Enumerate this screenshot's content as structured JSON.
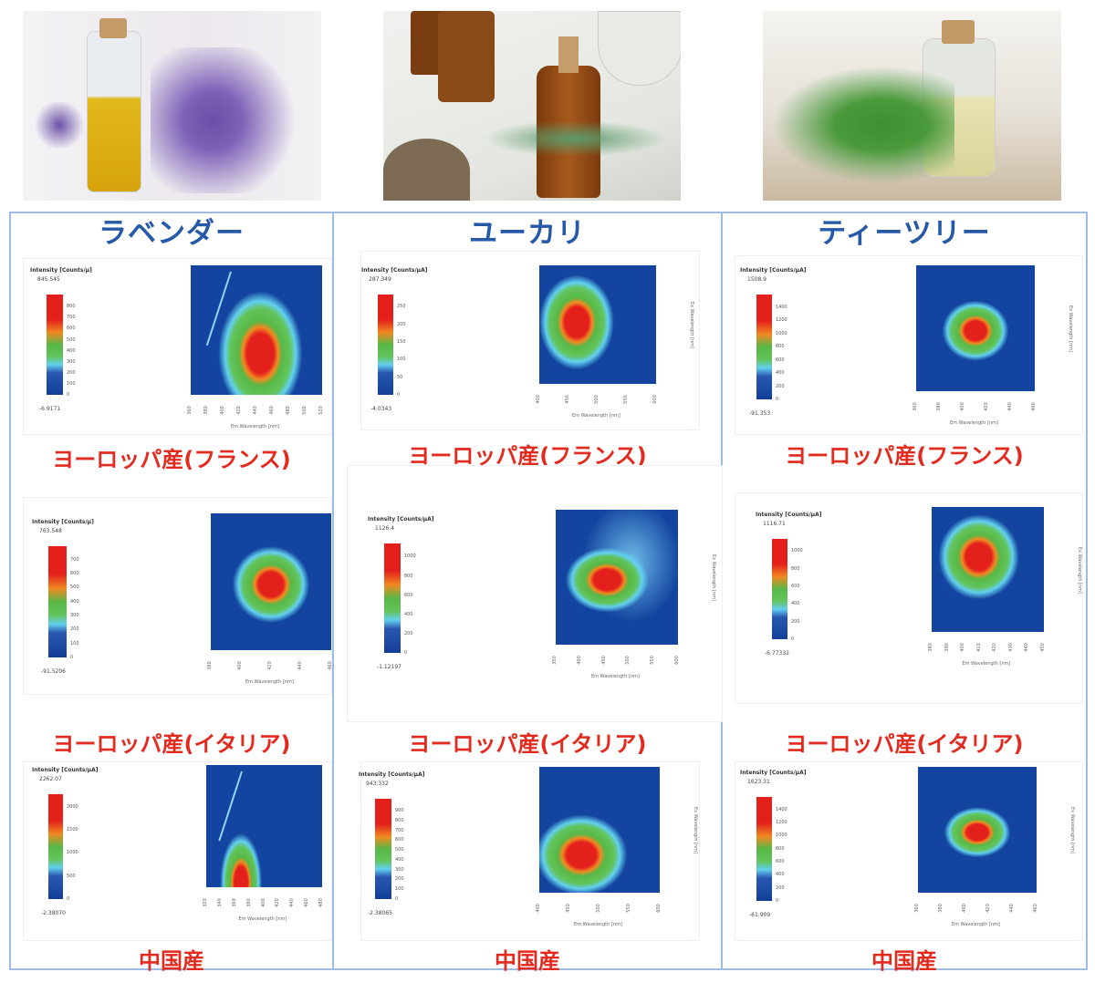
{
  "columns": [
    {
      "name": "ラベンダー",
      "photo": "lavender-oil-photo"
    },
    {
      "name": "ユーカリ",
      "photo": "eucalyptus-oil-photo"
    },
    {
      "name": "ティーツリー",
      "photo": "tea-tree-oil-photo"
    }
  ],
  "origins": [
    "ヨーロッパ産(フランス)",
    "ヨーロッパ産(イタリア)",
    "中国産"
  ],
  "colors": {
    "header": "#2659a8",
    "origin_label": "#e32a1e",
    "grid": "#9fbde3",
    "heatmap_bg": "#1344a0"
  },
  "panels": [
    {
      "title": "Intensity [Counts/µ]",
      "max": "845.545",
      "min": "-6.9171",
      "ticks": [
        "800",
        "700",
        "600",
        "500",
        "400",
        "300",
        "200",
        "100",
        "0"
      ],
      "xlabel": "Em Wavelength [nm]",
      "ylabel": "",
      "xticks": [
        "360",
        "380",
        "400",
        "420",
        "440",
        "460",
        "480",
        "500",
        "520"
      ]
    },
    {
      "title": "Intensity [Counts/µA]",
      "max": "287.349",
      "min": "-4.0343",
      "ticks": [
        "250",
        "200",
        "150",
        "100",
        "50",
        "0"
      ],
      "xlabel": "Em Wavelength [nm]",
      "ylabel": "Ex Wavelength [nm]",
      "xticks": [
        "400",
        "450",
        "500",
        "550",
        "600"
      ]
    },
    {
      "title": "Intensity [Counts/µA]",
      "max": "1508.9",
      "min": "-91.353",
      "ticks": [
        "1400",
        "1200",
        "1000",
        "800",
        "600",
        "400",
        "200",
        "0"
      ],
      "xlabel": "Em Wavelength [nm]",
      "ylabel": "Ex Wavelength [nm]",
      "xticks": [
        "360",
        "380",
        "400",
        "420",
        "440",
        "460"
      ]
    },
    {
      "title": "Intensity [Counts/µ]",
      "max": "763.548",
      "min": "-91.5206",
      "ticks": [
        "700",
        "600",
        "500",
        "400",
        "300",
        "200",
        "100",
        "0"
      ],
      "xlabel": "Em Wavelength [nm]",
      "ylabel": "",
      "xticks": [
        "380",
        "400",
        "420",
        "440",
        "460"
      ]
    },
    {
      "title": "Intensity [Counts/µA]",
      "max": "1126.4",
      "min": "-1.12197",
      "ticks": [
        "1000",
        "800",
        "600",
        "400",
        "200",
        "0"
      ],
      "xlabel": "Em Wavelength [nm]",
      "ylabel": "Ex Wavelength [nm]",
      "xticks": [
        "350",
        "400",
        "450",
        "500",
        "550",
        "600"
      ]
    },
    {
      "title": "Intensity [Counts/µA]",
      "max": "1116.71",
      "min": "-6.77332",
      "ticks": [
        "1000",
        "800",
        "600",
        "400",
        "200",
        "0"
      ],
      "xlabel": "Em Wavelength [nm]",
      "ylabel": "Ex Wavelength [nm]",
      "xticks": [
        "380",
        "390",
        "400",
        "410",
        "420",
        "430",
        "440",
        "450"
      ]
    },
    {
      "title": "Intensity [Counts/µA]",
      "max": "2262.07",
      "min": "-2.38070",
      "ticks": [
        "2000",
        "1500",
        "1000",
        "500",
        "0"
      ],
      "xlabel": "Em Wavelength [nm]",
      "ylabel": "",
      "xticks": [
        "320",
        "340",
        "360",
        "380",
        "400",
        "420",
        "440",
        "460",
        "480"
      ]
    },
    {
      "title": "Intensity [Counts/µA]",
      "max": "943.332",
      "min": "-2.38065",
      "ticks": [
        "900",
        "800",
        "700",
        "600",
        "500",
        "400",
        "300",
        "200",
        "100",
        "0"
      ],
      "xlabel": "Em Wavelength [nm]",
      "ylabel": "Ex Wavelength [nm]",
      "xticks": [
        "400",
        "450",
        "500",
        "550",
        "600"
      ]
    },
    {
      "title": "Intensity [Counts/µA]",
      "max": "1623.31",
      "min": "-61.909",
      "ticks": [
        "1400",
        "1200",
        "1000",
        "800",
        "600",
        "400",
        "200",
        "0"
      ],
      "xlabel": "Em Wavelength [nm]",
      "ylabel": "Ex Wavelength [nm]",
      "xticks": [
        "360",
        "380",
        "400",
        "420",
        "440",
        "460"
      ]
    }
  ]
}
